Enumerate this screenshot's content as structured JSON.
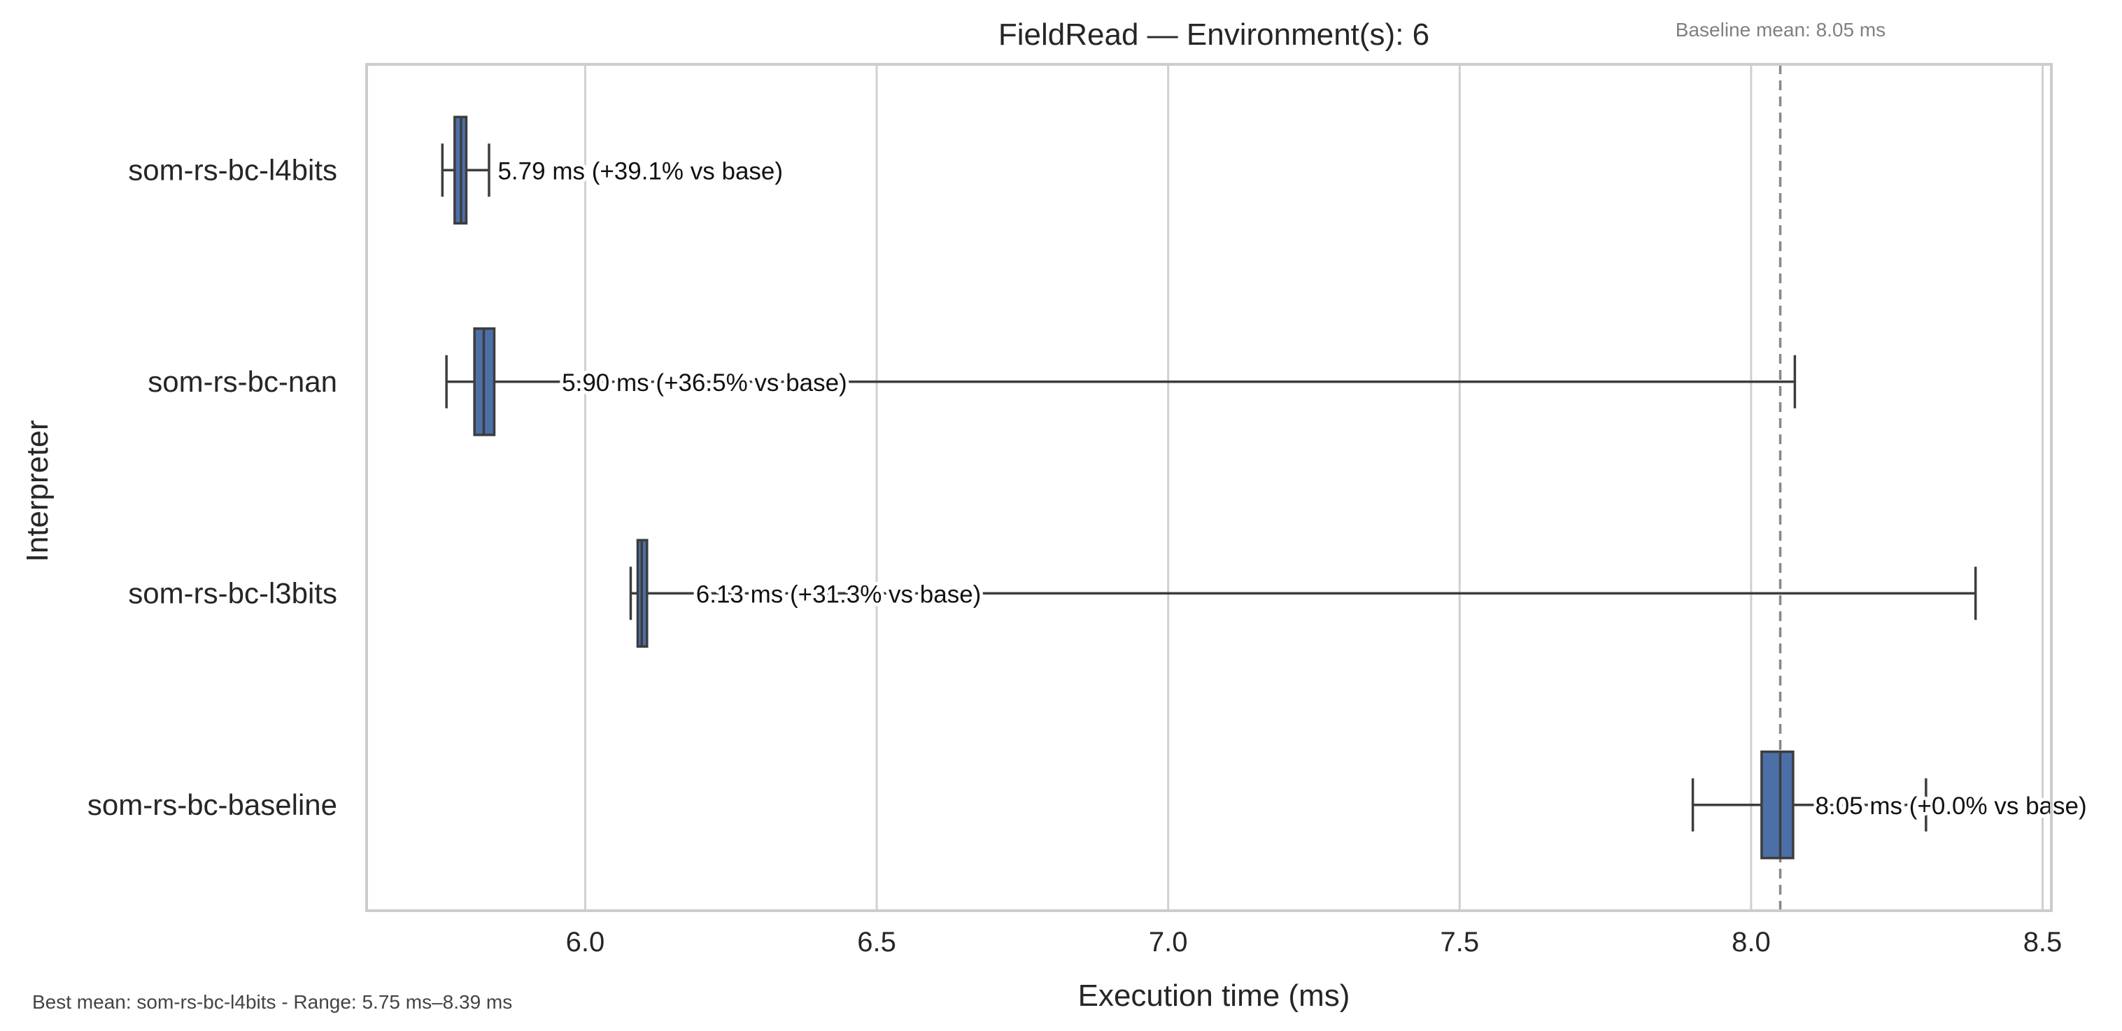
{
  "chart_data": {
    "type": "box",
    "orientation": "horizontal",
    "title": "FieldRead — Environment(s): 6",
    "xlabel": "Execution time (ms)",
    "ylabel": "Interpreter",
    "xlim": [
      5.625,
      8.515
    ],
    "xticks": [
      6.0,
      6.5,
      7.0,
      7.5,
      8.0,
      8.5
    ],
    "xtick_labels": [
      "6.0",
      "6.5",
      "7.0",
      "7.5",
      "8.0",
      "8.5"
    ],
    "grid": "vertical",
    "baseline_mean": 8.05,
    "baseline_note": "Baseline mean: 8.05 ms",
    "footer": "Best mean: som-rs-bc-l4bits - Range: 5.75 ms–8.39 ms",
    "box_color": "#4c6fa8",
    "categories": [
      "som-rs-bc-l4bits",
      "som-rs-bc-nan",
      "som-rs-bc-l3bits",
      "som-rs-bc-baseline"
    ],
    "boxes": [
      {
        "name": "som-rs-bc-l4bits",
        "whisker_low": 5.755,
        "q1": 5.776,
        "median": 5.787,
        "q3": 5.796,
        "whisker_high": 5.835,
        "mean": 5.79,
        "label": "5.79 ms  (+39.1% vs base)"
      },
      {
        "name": "som-rs-bc-nan",
        "whisker_low": 5.762,
        "q1": 5.81,
        "median": 5.826,
        "q3": 5.844,
        "whisker_high": 8.075,
        "mean": 5.9,
        "label": "5.90 ms  (+36.5% vs base)"
      },
      {
        "name": "som-rs-bc-l3bits",
        "whisker_low": 6.078,
        "q1": 6.09,
        "median": 6.097,
        "q3": 6.106,
        "whisker_high": 8.385,
        "mean": 6.13,
        "label": "6.13 ms  (+31.3% vs base)"
      },
      {
        "name": "som-rs-bc-baseline",
        "whisker_low": 7.9,
        "q1": 8.018,
        "median": 8.05,
        "q3": 8.072,
        "whisker_high": 8.3,
        "mean": 8.05,
        "label": "8.05 ms  (+0.0% vs base)"
      }
    ]
  }
}
